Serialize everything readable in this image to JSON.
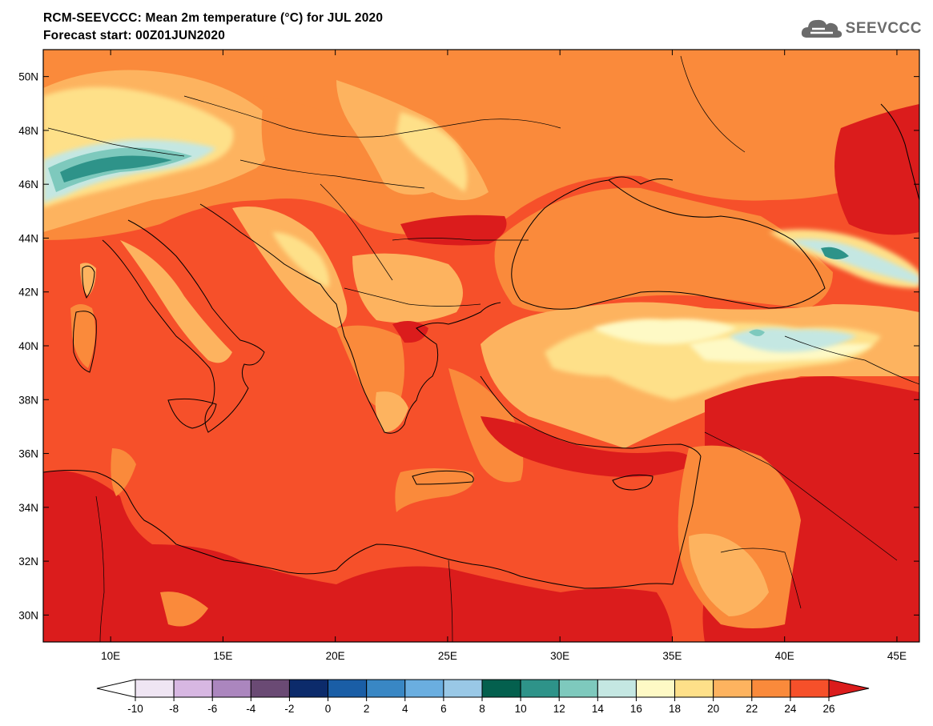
{
  "title_line1": "RCM-SEEVCCC: Mean 2m temperature (°C) for JUL 2020",
  "title_line2": "Forecast start: 00Z01JUN2020",
  "logo_text": "SEEVCCC",
  "map": {
    "lon_range": [
      7,
      46
    ],
    "lat_range": [
      29,
      51
    ],
    "lat_ticks": [
      {
        "value": 30,
        "label": "30N"
      },
      {
        "value": 32,
        "label": "32N"
      },
      {
        "value": 34,
        "label": "34N"
      },
      {
        "value": 36,
        "label": "36N"
      },
      {
        "value": 38,
        "label": "38N"
      },
      {
        "value": 40,
        "label": "40N"
      },
      {
        "value": 42,
        "label": "42N"
      },
      {
        "value": 44,
        "label": "44N"
      },
      {
        "value": 46,
        "label": "46N"
      },
      {
        "value": 48,
        "label": "48N"
      },
      {
        "value": 50,
        "label": "50N"
      }
    ],
    "lon_ticks": [
      {
        "value": 10,
        "label": "10E"
      },
      {
        "value": 15,
        "label": "15E"
      },
      {
        "value": 20,
        "label": "20E"
      },
      {
        "value": 25,
        "label": "25E"
      },
      {
        "value": 30,
        "label": "30E"
      },
      {
        "value": 35,
        "label": "35E"
      },
      {
        "value": 40,
        "label": "40E"
      },
      {
        "value": 45,
        "label": "45E"
      }
    ]
  },
  "colorbar": {
    "labels": [
      "-10",
      "-8",
      "-6",
      "-4",
      "-2",
      "0",
      "2",
      "4",
      "6",
      "8",
      "10",
      "12",
      "14",
      "16",
      "18",
      "20",
      "22",
      "24",
      "26"
    ],
    "under_color": "#ffffff",
    "colors": [
      "#efe5f3",
      "#d7b7e2",
      "#ab86be",
      "#6a4a74",
      "#0c2b6b",
      "#1a5ea6",
      "#3987c4",
      "#6aaee0",
      "#99c8e6",
      "#04604e",
      "#2e9389",
      "#7ec9bd",
      "#c4e7e2",
      "#fef9c5",
      "#fee089",
      "#fdb35f",
      "#fa8a3b",
      "#f6502a"
    ],
    "over_color": "#db1c1c"
  },
  "colors": {
    "sea": "#f6502a",
    "hot": "#db1c1c"
  }
}
